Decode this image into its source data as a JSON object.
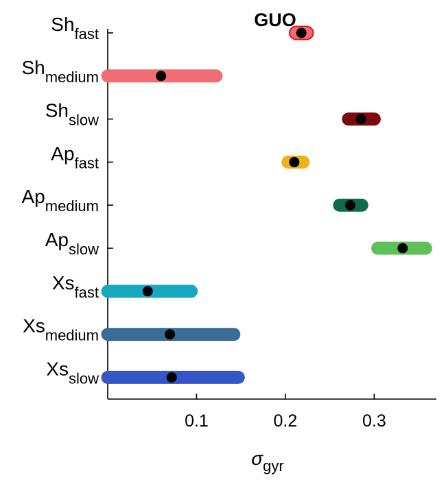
{
  "chart_data": {
    "type": "range",
    "title": "GUO",
    "xlabel_symbol": "σ",
    "xlabel_sub": "gyr",
    "xlim": [
      0,
      0.37
    ],
    "xticks": [
      0.1,
      0.2,
      0.3
    ],
    "xtick_labels": [
      "0.1",
      "0.2",
      "0.3"
    ],
    "grid": false,
    "series": [
      {
        "name": "Sh",
        "sub": "fast",
        "low": 0.212,
        "high": 0.224,
        "value": 0.218,
        "color": "#f26d73",
        "edge": "#e0101a"
      },
      {
        "name": "Sh",
        "sub": "medium",
        "low": 0.0,
        "high": 0.122,
        "value": 0.06,
        "color": "#f26d73"
      },
      {
        "name": "Sh",
        "sub": "slow",
        "low": 0.271,
        "high": 0.3,
        "value": 0.285,
        "color": "#7a0a0e"
      },
      {
        "name": "Ap",
        "sub": "fast",
        "low": 0.203,
        "high": 0.22,
        "value": 0.21,
        "color": "#f0b21a"
      },
      {
        "name": "Ap",
        "sub": "medium",
        "low": 0.261,
        "high": 0.286,
        "value": 0.273,
        "color": "#0f6b4e"
      },
      {
        "name": "Ap",
        "sub": "slow",
        "low": 0.304,
        "high": 0.358,
        "value": 0.332,
        "color": "#5fc05a"
      },
      {
        "name": "Xs",
        "sub": "fast",
        "low": 0.0,
        "high": 0.094,
        "value": 0.045,
        "color": "#17a8c2"
      },
      {
        "name": "Xs",
        "sub": "medium",
        "low": 0.0,
        "high": 0.142,
        "value": 0.07,
        "color": "#3b6c97"
      },
      {
        "name": "Xs",
        "sub": "slow",
        "low": 0.0,
        "high": 0.147,
        "value": 0.072,
        "color": "#3556c7"
      }
    ]
  }
}
